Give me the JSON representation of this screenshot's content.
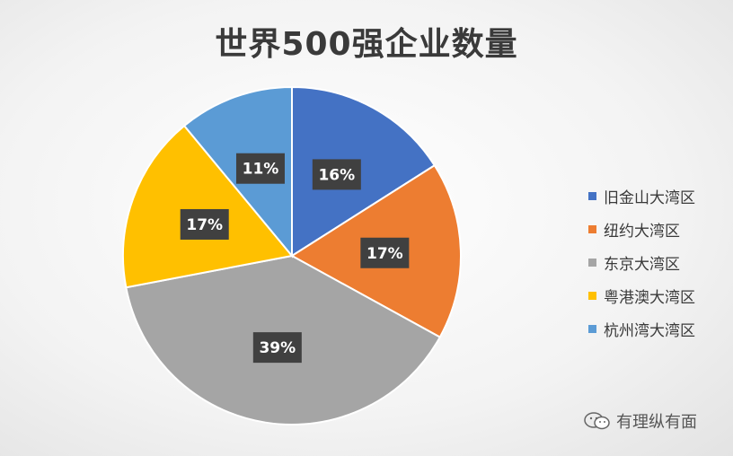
{
  "chart_data": {
    "type": "pie",
    "title": "世界500强企业数量",
    "slices": [
      {
        "name": "旧金山大湾区",
        "value": 16,
        "label": "16%",
        "color": "#4472c4"
      },
      {
        "name": "纽约大湾区",
        "value": 17,
        "label": "17%",
        "color": "#ed7d31"
      },
      {
        "name": "东京大湾区",
        "value": 39,
        "label": "39%",
        "color": "#a5a5a5"
      },
      {
        "name": "粤港澳大湾区",
        "value": 17,
        "label": "17%",
        "color": "#ffc000"
      },
      {
        "name": "杭州湾大湾区",
        "value": 11,
        "label": "11%",
        "color": "#5b9bd5"
      }
    ],
    "legend_position": "right"
  },
  "watermark": {
    "text": "有理纵有面",
    "icon": "wechat-icon"
  }
}
